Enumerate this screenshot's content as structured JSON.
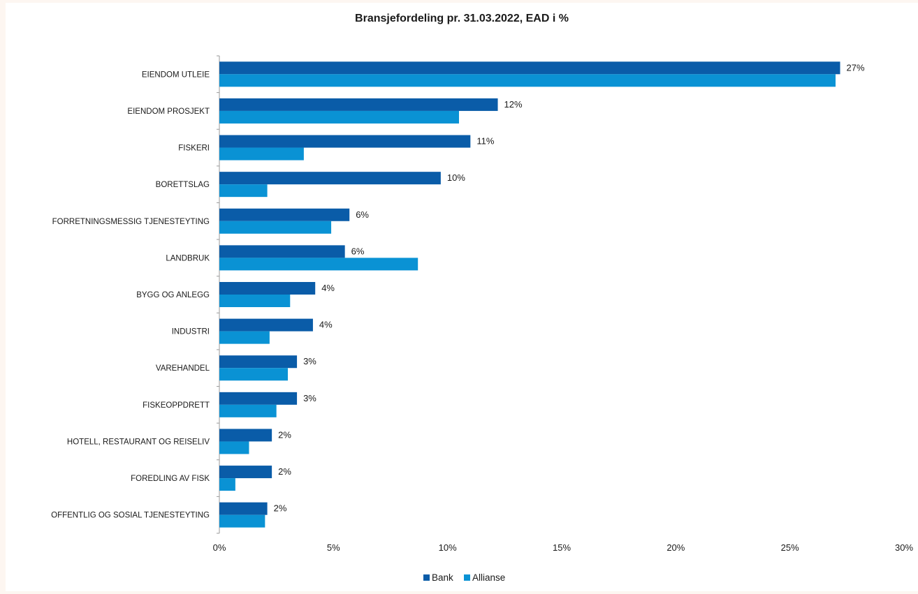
{
  "chart_data": {
    "type": "bar",
    "orientation": "horizontal",
    "title": "Bransjefordeling pr. 31.03.2022, EAD i %",
    "categories": [
      "EIENDOM UTLEIE",
      "EIENDOM PROSJEKT",
      "FISKERI",
      "BORETTSLAG",
      "FORRETNINGSMESSIG TJENESTEYTING",
      "LANDBRUK",
      "BYGG OG ANLEGG",
      "INDUSTRI",
      "VAREHANDEL",
      "FISKEOPPDRETT",
      "HOTELL, RESTAURANT OG REISELIV",
      "FOREDLING AV FISK",
      "OFFENTLIG OG SOSIAL TJENESTEYTING"
    ],
    "series": [
      {
        "name": "Bank",
        "color": "#0a5ca8",
        "values": [
          27.2,
          12.2,
          11.0,
          9.7,
          5.7,
          5.5,
          4.2,
          4.1,
          3.4,
          3.4,
          2.3,
          2.3,
          2.1
        ],
        "data_labels": [
          "27%",
          "12%",
          "11%",
          "10%",
          "6%",
          "6%",
          "4%",
          "4%",
          "3%",
          "3%",
          "2%",
          "2%",
          "2%"
        ]
      },
      {
        "name": "Allianse",
        "color": "#0a92d4",
        "values": [
          27.0,
          10.5,
          3.7,
          2.1,
          4.9,
          8.7,
          3.1,
          2.2,
          3.0,
          2.5,
          1.3,
          0.7,
          2.0
        ]
      }
    ],
    "xlim": [
      0,
      30
    ],
    "xticks": [
      "0%",
      "5%",
      "10%",
      "15%",
      "20%",
      "25%",
      "30%"
    ],
    "legend": "bottom-center",
    "grid": false
  }
}
